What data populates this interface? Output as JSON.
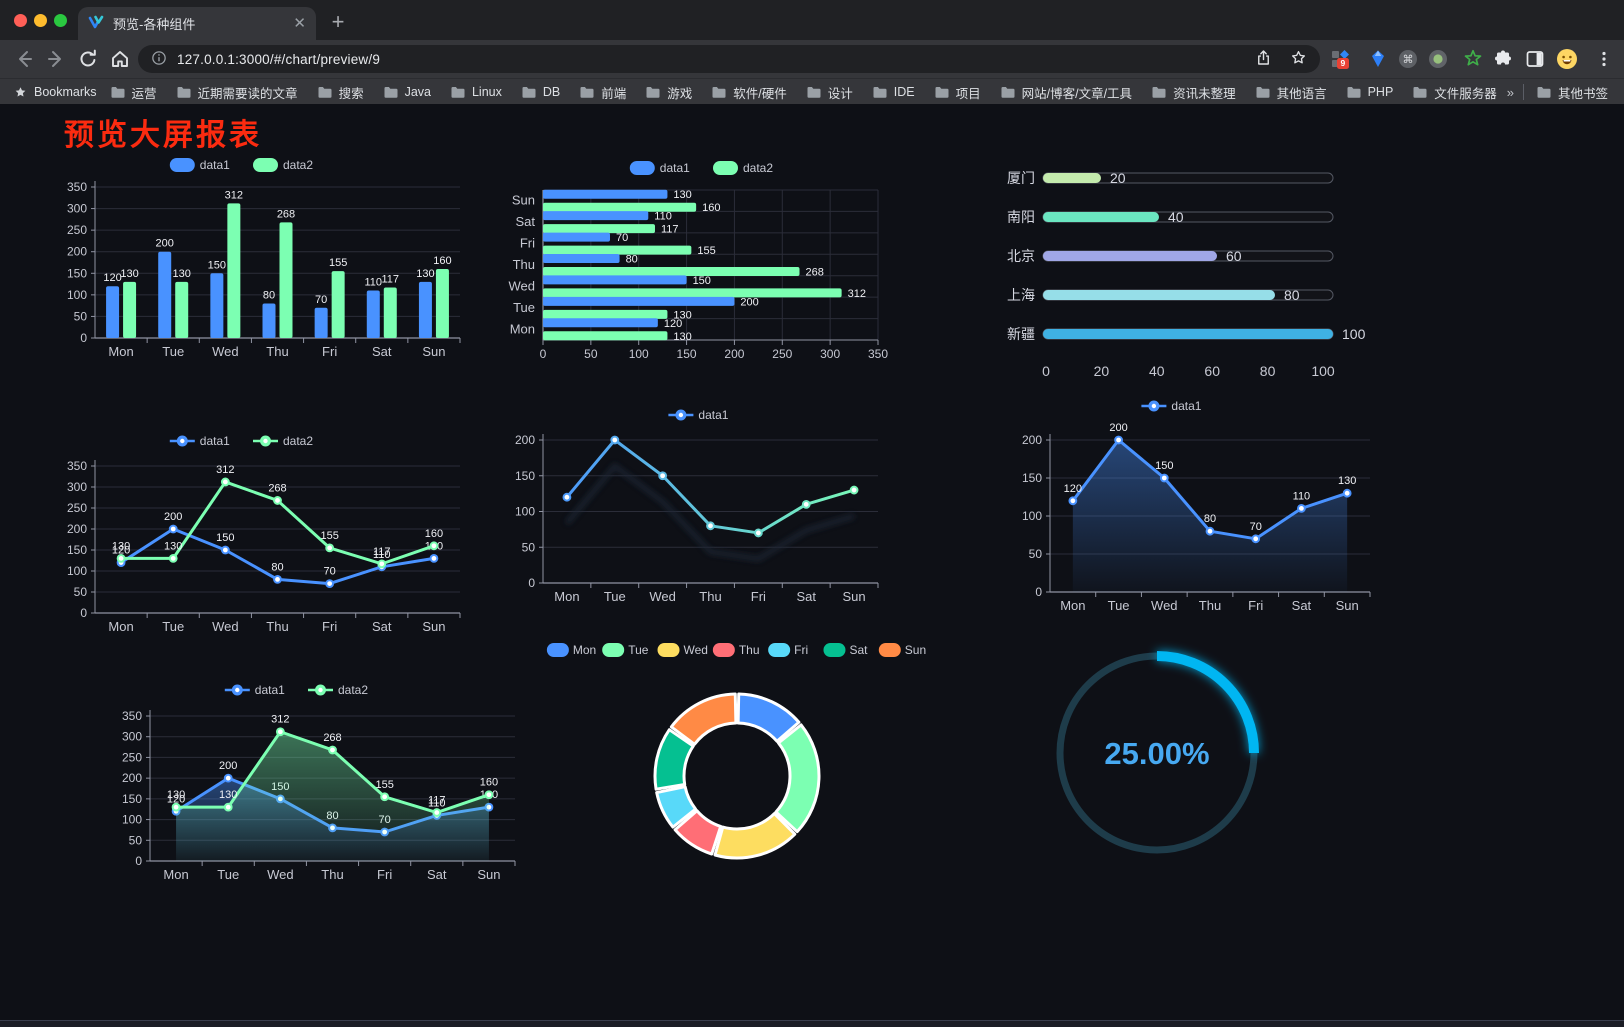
{
  "browser": {
    "window_controls": [
      "close",
      "minimize",
      "zoom"
    ],
    "tab": {
      "title": "预览-各种组件"
    },
    "new_tab_label": "+",
    "url": "127.0.0.1:3000/#/chart/preview/9",
    "extension_badge": "9",
    "bookmarks_label": "Bookmarks",
    "bookmarks": [
      "运营",
      "近期需要读的文章",
      "搜索",
      "Java",
      "Linux",
      "DB",
      "前端",
      "游戏",
      "软件/硬件",
      "设计",
      "IDE",
      "项目",
      "网站/博客/文章/工具",
      "资讯未整理",
      "其他语言",
      "PHP",
      "文件服务器"
    ],
    "bookmarks_overflow": "»",
    "other_bookmarks": "其他书签",
    "icons": {
      "tab_favicon": "datav-logo-icon",
      "nav": [
        "back-icon",
        "forward-icon",
        "reload-icon",
        "home-icon"
      ],
      "omnibox": [
        "info-icon",
        "share-icon",
        "star-icon"
      ],
      "extensions": [
        "grid-badge-icon",
        "gem-icon",
        "command-circle-icon",
        "record-circle-icon",
        "green-star-icon",
        "puzzle-icon",
        "sidebar-icon",
        "emoji-avatar"
      ],
      "menu": "kebab-menu-icon"
    }
  },
  "page": {
    "title": "预览大屏报表",
    "title_color": "#fb2b10",
    "background": "#0e1016"
  },
  "theme": {
    "accent_blue": "#4992ff",
    "accent_green": "#7cffb2",
    "axis_label": "#c7c9d3",
    "grid": "#2b2d39"
  },
  "charts": [
    {
      "id": "bar-grouped",
      "type": "bar",
      "legend": [
        "data1",
        "data2"
      ],
      "categories": [
        "Mon",
        "Tue",
        "Wed",
        "Thu",
        "Fri",
        "Sat",
        "Sun"
      ],
      "series": [
        {
          "name": "data1",
          "color": "#4992ff",
          "values": [
            120,
            200,
            150,
            80,
            70,
            110,
            130
          ]
        },
        {
          "name": "data2",
          "color": "#7cffb2",
          "values": [
            130,
            130,
            312,
            268,
            155,
            117,
            160
          ]
        }
      ],
      "ylim": [
        0,
        350
      ],
      "ystep": 50,
      "value_labels": true
    },
    {
      "id": "barh-grouped",
      "type": "barh",
      "legend": [
        "data1",
        "data2"
      ],
      "categories_top_to_bottom": [
        "Sun",
        "Sat",
        "Fri",
        "Thu",
        "Wed",
        "Tue",
        "Mon"
      ],
      "series": [
        {
          "name": "data1",
          "color": "#4992ff",
          "values_top_to_bottom": [
            130,
            110,
            70,
            80,
            150,
            200,
            120
          ]
        },
        {
          "name": "data2",
          "color": "#7cffb2",
          "values_top_to_bottom": [
            160,
            117,
            155,
            268,
            312,
            130,
            130
          ]
        }
      ],
      "xlim": [
        0,
        350
      ],
      "xstep": 50,
      "value_labels": true
    },
    {
      "id": "city-progress",
      "type": "progress",
      "max": 100,
      "rows": [
        {
          "label": "厦门",
          "value": 20,
          "color": "#c4ebad"
        },
        {
          "label": "南阳",
          "value": 40,
          "color": "#6be6c1"
        },
        {
          "label": "北京",
          "value": 60,
          "color": "#a0a7e6"
        },
        {
          "label": "上海",
          "value": 80,
          "color": "#96dee8"
        },
        {
          "label": "新疆",
          "value": 100,
          "color": "#3fb1e3"
        }
      ],
      "xticks": [
        0,
        20,
        40,
        60,
        80,
        100
      ]
    },
    {
      "id": "line-dual",
      "type": "line",
      "legend": [
        "data1",
        "data2"
      ],
      "categories": [
        "Mon",
        "Tue",
        "Wed",
        "Thu",
        "Fri",
        "Sat",
        "Sun"
      ],
      "series": [
        {
          "name": "data1",
          "color": "#4992ff",
          "values": [
            120,
            200,
            150,
            80,
            70,
            110,
            130
          ]
        },
        {
          "name": "data2",
          "color": "#7cffb2",
          "values": [
            130,
            130,
            312,
            268,
            155,
            117,
            160
          ]
        }
      ],
      "ylim": [
        0,
        350
      ],
      "ystep": 50,
      "value_labels": true
    },
    {
      "id": "line-gradient",
      "type": "line",
      "legend": [
        "data1"
      ],
      "categories": [
        "Mon",
        "Tue",
        "Wed",
        "Thu",
        "Fri",
        "Sat",
        "Sun"
      ],
      "series": [
        {
          "name": "data1",
          "color": "#4992ff",
          "gradient": [
            "#4992ff",
            "#7cffb2"
          ],
          "shadow": true,
          "values": [
            120,
            200,
            150,
            80,
            70,
            110,
            130
          ]
        }
      ],
      "ylim": [
        0,
        200
      ],
      "ystep": 50,
      "value_labels": false
    },
    {
      "id": "line-area-single",
      "type": "line",
      "legend": [
        "data1"
      ],
      "categories": [
        "Mon",
        "Tue",
        "Wed",
        "Thu",
        "Fri",
        "Sat",
        "Sun"
      ],
      "series": [
        {
          "name": "data1",
          "color": "#4992ff",
          "area": true,
          "values": [
            120,
            200,
            150,
            80,
            70,
            110,
            130
          ]
        }
      ],
      "ylim": [
        0,
        200
      ],
      "ystep": 50,
      "value_labels": true
    },
    {
      "id": "line-area-dual",
      "type": "line",
      "legend": [
        "data1",
        "data2"
      ],
      "categories": [
        "Mon",
        "Tue",
        "Wed",
        "Thu",
        "Fri",
        "Sat",
        "Sun"
      ],
      "series": [
        {
          "name": "data1",
          "color": "#4992ff",
          "area": true,
          "values": [
            120,
            200,
            150,
            80,
            70,
            110,
            130
          ]
        },
        {
          "name": "data2",
          "color": "#7cffb2",
          "area": true,
          "values": [
            130,
            130,
            312,
            268,
            155,
            117,
            160
          ]
        }
      ],
      "ylim": [
        0,
        350
      ],
      "ystep": 50,
      "value_labels": true
    },
    {
      "id": "donut",
      "type": "pie",
      "labels": [
        "Mon",
        "Tue",
        "Wed",
        "Thu",
        "Fri",
        "Sat",
        "Sun"
      ],
      "values": [
        120,
        200,
        150,
        80,
        70,
        110,
        130
      ],
      "colors": [
        "#4992ff",
        "#7cffb2",
        "#fddd60",
        "#ff6e76",
        "#58d9f9",
        "#05c091",
        "#ff8a45"
      ]
    },
    {
      "id": "gauge",
      "type": "gauge",
      "value_text": "25.00%",
      "percent": 25,
      "arc_color": "#00b6f2",
      "track_color": "#1e3c4a",
      "text_color": "#47a9f1"
    }
  ]
}
